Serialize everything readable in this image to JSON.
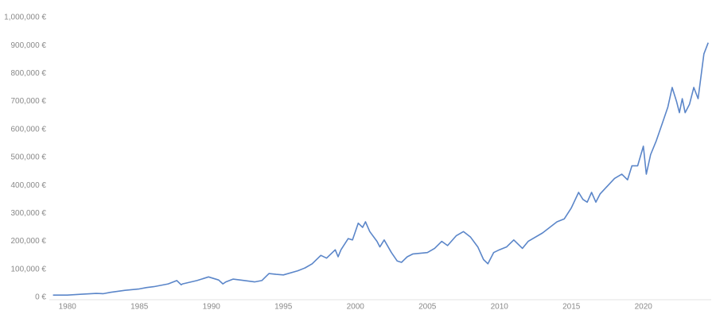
{
  "chart_data": {
    "type": "line",
    "color": "#5b86c9",
    "x": [
      1979.0,
      1980,
      1981,
      1982,
      1982.5,
      1983,
      1984,
      1985,
      1985.5,
      1986,
      1987,
      1987.6,
      1987.9,
      1988,
      1989,
      1989.8,
      1990.5,
      1990.8,
      1991,
      1991.5,
      1992,
      1993,
      1993.5,
      1994,
      1994.5,
      1995,
      1996,
      1996.5,
      1997,
      1997.6,
      1998,
      1998.6,
      1998.8,
      1999,
      1999.5,
      1999.8,
      2000.2,
      2000.5,
      2000.7,
      2001,
      2001.5,
      2001.7,
      2002,
      2002.5,
      2002.9,
      2003.2,
      2003.6,
      2004,
      2005,
      2005.5,
      2006,
      2006.4,
      2007,
      2007.5,
      2008,
      2008.5,
      2008.9,
      2009.2,
      2009.6,
      2010,
      2010.5,
      2011,
      2011.6,
      2012,
      2013,
      2014,
      2014.5,
      2015,
      2015.5,
      2015.8,
      2016.1,
      2016.4,
      2016.7,
      2017,
      2018,
      2018.5,
      2018.9,
      2019.2,
      2019.6,
      2020,
      2020.2,
      2020.5,
      2020.9,
      2021.3,
      2021.7,
      2022.0,
      2022.3,
      2022.5,
      2022.7,
      2022.9,
      2023.2,
      2023.5,
      2023.8,
      2024.2,
      2024.5
    ],
    "values": [
      8000,
      8000,
      11000,
      14000,
      13000,
      18000,
      25000,
      30000,
      35000,
      38000,
      48000,
      60000,
      45000,
      48000,
      60000,
      73000,
      62000,
      48000,
      55000,
      65000,
      62000,
      55000,
      60000,
      85000,
      82000,
      80000,
      95000,
      105000,
      120000,
      150000,
      140000,
      170000,
      145000,
      170000,
      210000,
      205000,
      265000,
      250000,
      270000,
      235000,
      200000,
      180000,
      205000,
      160000,
      130000,
      125000,
      145000,
      155000,
      160000,
      175000,
      200000,
      185000,
      220000,
      235000,
      215000,
      180000,
      135000,
      120000,
      160000,
      170000,
      180000,
      205000,
      175000,
      200000,
      230000,
      270000,
      280000,
      320000,
      375000,
      350000,
      340000,
      375000,
      340000,
      370000,
      425000,
      440000,
      420000,
      470000,
      470000,
      540000,
      440000,
      510000,
      560000,
      620000,
      680000,
      750000,
      700000,
      660000,
      710000,
      660000,
      690000,
      750000,
      710000,
      870000,
      910000
    ],
    "xlim": [
      1978.8,
      2024.6
    ],
    "xticks": [
      1980,
      1985,
      1990,
      1995,
      2000,
      2005,
      2010,
      2015,
      2020
    ],
    "ylim": [
      0,
      1000000
    ],
    "yticks": [
      {
        "value": 0,
        "label": "0 €"
      },
      {
        "value": 100000,
        "label": "100,000 €"
      },
      {
        "value": 200000,
        "label": "200,000 €"
      },
      {
        "value": 300000,
        "label": "300,000 €"
      },
      {
        "value": 400000,
        "label": "400,000 €"
      },
      {
        "value": 500000,
        "label": "500,000 €"
      },
      {
        "value": 600000,
        "label": "600,000 €"
      },
      {
        "value": 700000,
        "label": "700,000 €"
      },
      {
        "value": 800000,
        "label": "800,000 €"
      },
      {
        "value": 900000,
        "label": "900,000 €"
      },
      {
        "value": 1000000,
        "label": "1,000,000 €"
      }
    ]
  }
}
